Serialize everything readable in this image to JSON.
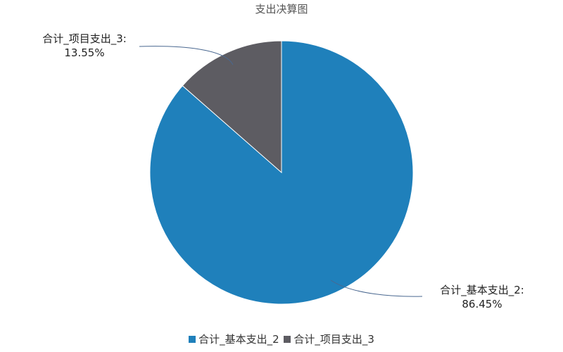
{
  "chart_data": {
    "type": "pie",
    "title": "支出决算图",
    "slices": [
      {
        "name": "合计_基本支出_2",
        "percent": 86.45,
        "label": "合计_基本支出_2:",
        "value_label": "86.45%",
        "color": "#1F80BB"
      },
      {
        "name": "合计_项目支出_3",
        "percent": 13.55,
        "label": "合计_项目支出_3:",
        "value_label": "13.55%",
        "color": "#5D5C62"
      }
    ],
    "legend_position": "bottom",
    "leader_line_color": "#4A6890"
  }
}
